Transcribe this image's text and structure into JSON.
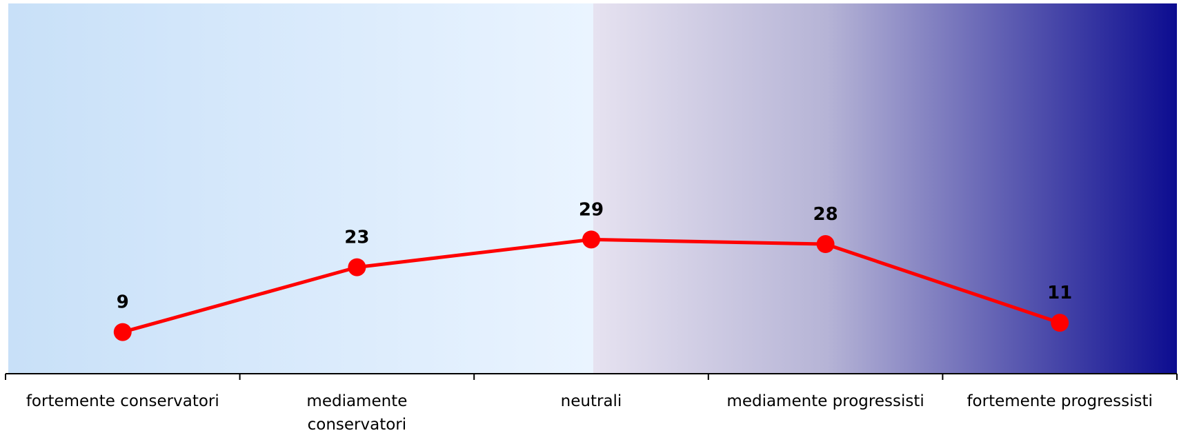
{
  "chart_data": {
    "type": "line",
    "categories": [
      [
        "fortemente conservatori"
      ],
      [
        "mediamente",
        "conservatori"
      ],
      [
        "neutrali"
      ],
      [
        "mediamente progressisti"
      ],
      [
        "fortemente progressisti"
      ]
    ],
    "values": [
      9,
      23,
      29,
      28,
      11
    ],
    "data_labels": [
      "9",
      "23",
      "29",
      "28",
      "11"
    ],
    "ylim": [
      0,
      80
    ],
    "grid": false,
    "legend": "none",
    "title": "",
    "xlabel": "",
    "ylabel": ""
  },
  "colors": {
    "line": "#ff0000",
    "marker": "#ff0000",
    "background_left_start": "#c8e0f8",
    "background_left_end": "#eaf4ff",
    "background_right_start": "#e6e2f0",
    "background_right_mid": "#b6b4d6",
    "background_right_end": "#0c0c90",
    "axis": "#000000"
  }
}
